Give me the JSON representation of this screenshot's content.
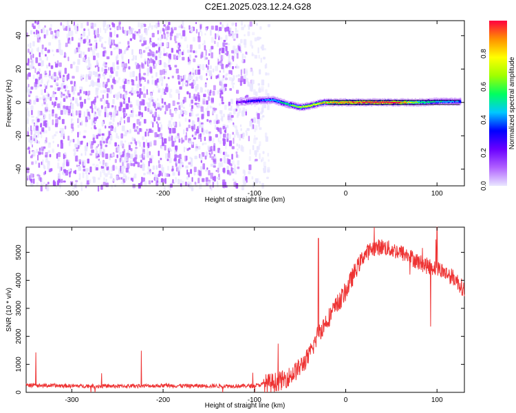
{
  "title": "C2E1.2025.023.12.24.G28",
  "chart_data": [
    {
      "type": "heatmap",
      "title": "C2E1.2025.023.12.24.G28",
      "xlabel": "Height of straight line (km)",
      "ylabel": "Frequency (Hz)",
      "xlim": [
        -350,
        130
      ],
      "ylim": [
        -50,
        49
      ],
      "x_ticks": [
        -300,
        -200,
        -100,
        0,
        100
      ],
      "y_ticks": [
        -40,
        -20,
        0,
        20,
        40
      ],
      "noise_region": {
        "x": [
          -350,
          -85
        ],
        "frequency_band": [
          -50,
          49
        ],
        "amplitude": [
          0.0,
          0.2
        ]
      },
      "signal_track": [
        {
          "x": -120,
          "freq": 0,
          "amp": 0.25
        },
        {
          "x": -100,
          "freq": 1,
          "amp": 0.35
        },
        {
          "x": -80,
          "freq": 1.5,
          "amp": 0.45
        },
        {
          "x": -65,
          "freq": -1,
          "amp": 0.55
        },
        {
          "x": -50,
          "freq": -3,
          "amp": 0.7
        },
        {
          "x": -40,
          "freq": -2,
          "amp": 0.75
        },
        {
          "x": -25,
          "freq": 0,
          "amp": 0.8
        },
        {
          "x": -10,
          "freq": 0,
          "amp": 0.85
        },
        {
          "x": 10,
          "freq": 0,
          "amp": 0.9
        },
        {
          "x": 30,
          "freq": 0,
          "amp": 0.95
        },
        {
          "x": 55,
          "freq": 0,
          "amp": 0.95
        },
        {
          "x": 80,
          "freq": 0,
          "amp": 0.6
        },
        {
          "x": 100,
          "freq": 0.5,
          "amp": 0.5
        },
        {
          "x": 125,
          "freq": 0.5,
          "amp": 0.4
        }
      ],
      "colorbar": {
        "label": "Normalized spectral amplitude",
        "range": [
          0,
          1
        ],
        "ticks": [
          0.0,
          0.2,
          0.4,
          0.6,
          0.8
        ],
        "tick_labels": [
          "0.0",
          "0.2",
          "0.4",
          "0.6",
          "0.8"
        ],
        "colors": [
          "#e9e6ff",
          "#b060ff",
          "#6a00ff",
          "#0000ff",
          "#00c8ff",
          "#00ff60",
          "#a0ff00",
          "#ffff00",
          "#ff9000",
          "#ff0040"
        ]
      },
      "grid": false
    },
    {
      "type": "line",
      "xlabel": "Height of straight line (km)",
      "ylabel": "SNR (10 * v/v)",
      "xlim": [
        -350,
        130
      ],
      "ylim": [
        0,
        5900
      ],
      "x_ticks": [
        -300,
        -200,
        -100,
        0,
        100
      ],
      "y_ticks": [
        0,
        1000,
        2000,
        3000,
        4000,
        5000
      ],
      "color": "#ee3333",
      "grid": false,
      "x": [
        -350,
        -300,
        -250,
        -200,
        -150,
        -100,
        -90,
        -80,
        -70,
        -60,
        -50,
        -40,
        -30,
        -20,
        -10,
        0,
        10,
        20,
        30,
        40,
        50,
        60,
        70,
        80,
        90,
        100,
        110,
        120,
        130
      ],
      "y": [
        250,
        230,
        220,
        240,
        230,
        230,
        300,
        350,
        420,
        600,
        900,
        1300,
        2100,
        2600,
        3100,
        3600,
        4300,
        4900,
        5150,
        5200,
        5100,
        5000,
        4850,
        4650,
        4500,
        4450,
        4250,
        4050,
        3650
      ]
    }
  ]
}
